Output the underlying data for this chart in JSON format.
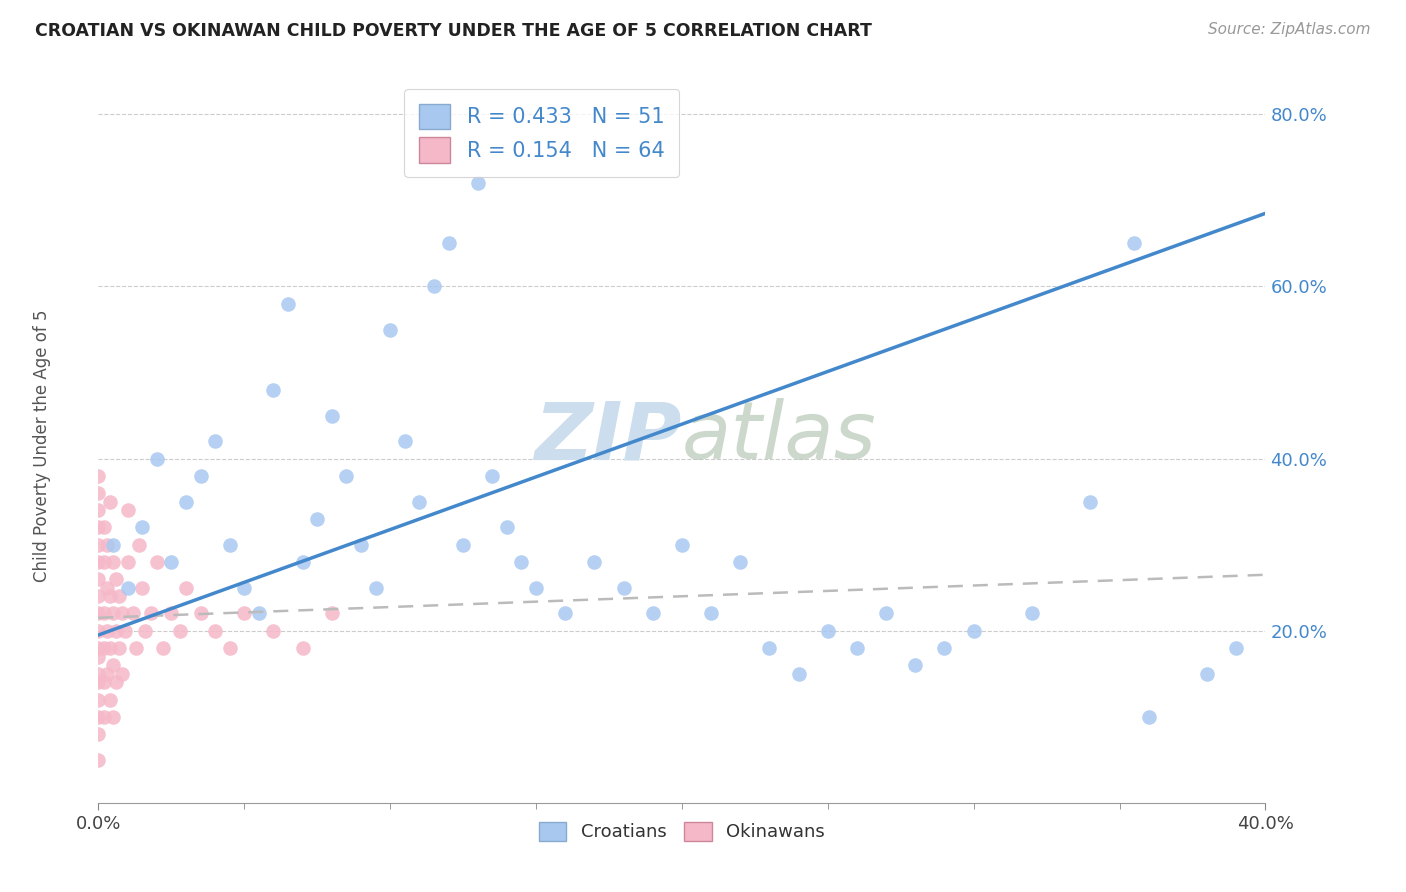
{
  "title": "CROATIAN VS OKINAWAN CHILD POVERTY UNDER THE AGE OF 5 CORRELATION CHART",
  "source": "Source: ZipAtlas.com",
  "ylabel": "Child Poverty Under the Age of 5",
  "xlim": [
    0.0,
    0.4
  ],
  "ylim": [
    0.0,
    0.85
  ],
  "ytick_vals": [
    0.2,
    0.4,
    0.6,
    0.8
  ],
  "ytick_labels": [
    "20.0%",
    "40.0%",
    "60.0%",
    "80.0%"
  ],
  "xtick_major_vals": [
    0.0,
    0.4
  ],
  "xtick_major_labels": [
    "0.0%",
    "40.0%"
  ],
  "xtick_minor_vals": [
    0.05,
    0.1,
    0.15,
    0.2,
    0.25,
    0.3,
    0.35
  ],
  "croatian_color": "#a8c8f0",
  "okinawan_color": "#f5b8c8",
  "trendline_croatian_color": "#4488cc",
  "trendline_okinawan_color": "#bbbbbb",
  "watermark_color": "#ccdded",
  "R_croatian": 0.433,
  "N_croatian": 51,
  "R_okinawan": 0.154,
  "N_okinawan": 64,
  "cr_trendline_x": [
    0.0,
    0.4
  ],
  "cr_trendline_y": [
    0.195,
    0.685
  ],
  "ok_trendline_x": [
    0.0,
    0.4
  ],
  "ok_trendline_y": [
    0.215,
    0.265
  ],
  "croatian_pts": [
    [
      0.005,
      0.3
    ],
    [
      0.01,
      0.25
    ],
    [
      0.015,
      0.32
    ],
    [
      0.02,
      0.4
    ],
    [
      0.025,
      0.28
    ],
    [
      0.03,
      0.35
    ],
    [
      0.035,
      0.38
    ],
    [
      0.04,
      0.42
    ],
    [
      0.045,
      0.3
    ],
    [
      0.05,
      0.25
    ],
    [
      0.055,
      0.22
    ],
    [
      0.06,
      0.48
    ],
    [
      0.065,
      0.58
    ],
    [
      0.07,
      0.28
    ],
    [
      0.075,
      0.33
    ],
    [
      0.08,
      0.45
    ],
    [
      0.085,
      0.38
    ],
    [
      0.09,
      0.3
    ],
    [
      0.095,
      0.25
    ],
    [
      0.1,
      0.55
    ],
    [
      0.105,
      0.42
    ],
    [
      0.11,
      0.35
    ],
    [
      0.115,
      0.6
    ],
    [
      0.12,
      0.65
    ],
    [
      0.125,
      0.3
    ],
    [
      0.13,
      0.72
    ],
    [
      0.135,
      0.38
    ],
    [
      0.14,
      0.32
    ],
    [
      0.145,
      0.28
    ],
    [
      0.15,
      0.25
    ],
    [
      0.16,
      0.22
    ],
    [
      0.17,
      0.28
    ],
    [
      0.18,
      0.25
    ],
    [
      0.19,
      0.22
    ],
    [
      0.2,
      0.3
    ],
    [
      0.21,
      0.22
    ],
    [
      0.22,
      0.28
    ],
    [
      0.23,
      0.18
    ],
    [
      0.24,
      0.15
    ],
    [
      0.25,
      0.2
    ],
    [
      0.26,
      0.18
    ],
    [
      0.27,
      0.22
    ],
    [
      0.28,
      0.16
    ],
    [
      0.29,
      0.18
    ],
    [
      0.3,
      0.2
    ],
    [
      0.32,
      0.22
    ],
    [
      0.34,
      0.35
    ],
    [
      0.355,
      0.65
    ],
    [
      0.36,
      0.1
    ],
    [
      0.38,
      0.15
    ],
    [
      0.39,
      0.18
    ]
  ],
  "okinawan_pts": [
    [
      0.0,
      0.05
    ],
    [
      0.0,
      0.08
    ],
    [
      0.0,
      0.1
    ],
    [
      0.0,
      0.12
    ],
    [
      0.0,
      0.14
    ],
    [
      0.0,
      0.15
    ],
    [
      0.0,
      0.17
    ],
    [
      0.0,
      0.18
    ],
    [
      0.0,
      0.2
    ],
    [
      0.0,
      0.22
    ],
    [
      0.0,
      0.24
    ],
    [
      0.0,
      0.26
    ],
    [
      0.0,
      0.28
    ],
    [
      0.0,
      0.3
    ],
    [
      0.0,
      0.32
    ],
    [
      0.0,
      0.34
    ],
    [
      0.0,
      0.36
    ],
    [
      0.0,
      0.38
    ],
    [
      0.002,
      0.1
    ],
    [
      0.002,
      0.14
    ],
    [
      0.002,
      0.18
    ],
    [
      0.002,
      0.22
    ],
    [
      0.002,
      0.28
    ],
    [
      0.002,
      0.32
    ],
    [
      0.003,
      0.15
    ],
    [
      0.003,
      0.2
    ],
    [
      0.003,
      0.25
    ],
    [
      0.003,
      0.3
    ],
    [
      0.004,
      0.12
    ],
    [
      0.004,
      0.18
    ],
    [
      0.004,
      0.24
    ],
    [
      0.004,
      0.35
    ],
    [
      0.005,
      0.1
    ],
    [
      0.005,
      0.16
    ],
    [
      0.005,
      0.22
    ],
    [
      0.005,
      0.28
    ],
    [
      0.006,
      0.14
    ],
    [
      0.006,
      0.2
    ],
    [
      0.006,
      0.26
    ],
    [
      0.007,
      0.18
    ],
    [
      0.007,
      0.24
    ],
    [
      0.008,
      0.15
    ],
    [
      0.008,
      0.22
    ],
    [
      0.009,
      0.2
    ],
    [
      0.01,
      0.28
    ],
    [
      0.01,
      0.34
    ],
    [
      0.012,
      0.22
    ],
    [
      0.013,
      0.18
    ],
    [
      0.014,
      0.3
    ],
    [
      0.015,
      0.25
    ],
    [
      0.016,
      0.2
    ],
    [
      0.018,
      0.22
    ],
    [
      0.02,
      0.28
    ],
    [
      0.022,
      0.18
    ],
    [
      0.025,
      0.22
    ],
    [
      0.028,
      0.2
    ],
    [
      0.03,
      0.25
    ],
    [
      0.035,
      0.22
    ],
    [
      0.04,
      0.2
    ],
    [
      0.045,
      0.18
    ],
    [
      0.05,
      0.22
    ],
    [
      0.06,
      0.2
    ],
    [
      0.07,
      0.18
    ],
    [
      0.08,
      0.22
    ]
  ]
}
